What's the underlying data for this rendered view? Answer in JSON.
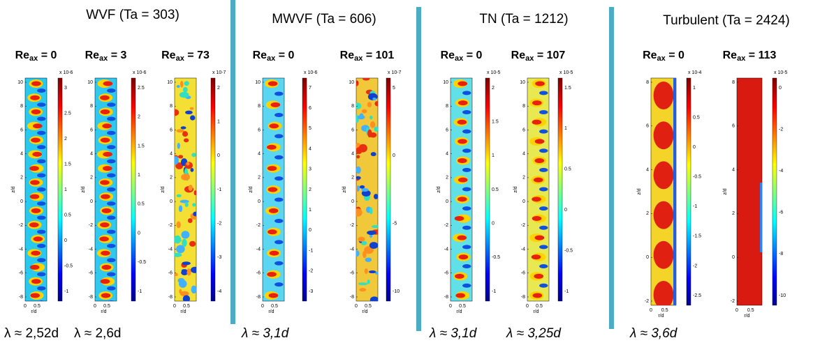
{
  "groups": [
    {
      "title": "WVF (Ta = 303)",
      "panels": [
        {
          "re": {
            "base": "Re",
            "sub": "ax",
            "rest": " = 0"
          },
          "lambda": "λ ≈ 2,52d",
          "yticks": [
            "10",
            "8",
            "6",
            "4",
            "2",
            "0",
            "-2",
            "-4",
            "-6",
            "-8"
          ],
          "xticks": [
            "0",
            "0.5"
          ],
          "xlabel": "r/d",
          "ylabel": "z/d",
          "cb_exp": "x 10-6",
          "cbticks": [
            "3",
            "2.5",
            "2",
            "1.5",
            "1",
            "0.5",
            "0",
            "-0.5",
            "-1"
          ]
        },
        {
          "re": {
            "base": "Re",
            "sub": "ax",
            "rest": " = 3"
          },
          "lambda": "λ ≈ 2,6d",
          "yticks": [
            "10",
            "8",
            "6",
            "4",
            "2",
            "0",
            "-2",
            "-4",
            "-6",
            "-8"
          ],
          "xticks": [
            "0",
            "0.5"
          ],
          "xlabel": "r/d",
          "ylabel": "z/d",
          "cb_exp": "x 10-6",
          "cbticks": [
            "2.5",
            "2",
            "1.5",
            "1",
            "0.5",
            "0",
            "-0.5",
            "-1"
          ]
        },
        {
          "re": {
            "base": "Re",
            "sub": "ax",
            "rest": " = 73"
          },
          "yticks": [
            "10",
            "8",
            "6",
            "4",
            "2",
            "0",
            "-2",
            "-4",
            "-6",
            "-8"
          ],
          "xticks": [
            "0",
            "0.5"
          ],
          "xlabel": "r/d",
          "ylabel": "z/d",
          "cb_exp": "x 10-7",
          "cbticks": [
            "2",
            "1",
            "0",
            "-1",
            "-2",
            "-3",
            "-4"
          ]
        }
      ]
    },
    {
      "title": "MWVF (Ta = 606)",
      "panels": [
        {
          "re": {
            "base": "Re",
            "sub": "ax",
            "rest": " = 0"
          },
          "lambda": "λ ≈ 3,1d",
          "yticks": [
            "10",
            "8",
            "6",
            "4",
            "2",
            "0",
            "-2",
            "-4",
            "-6",
            "-8"
          ],
          "xticks": [
            "0",
            "0.5"
          ],
          "xlabel": "r/d",
          "ylabel": "z/d",
          "cb_exp": "x 10-6",
          "cbticks": [
            "7",
            "6",
            "5",
            "4",
            "3",
            "2",
            "1",
            "0",
            "-1",
            "-2",
            "-3"
          ]
        },
        {
          "re": {
            "base": "Re",
            "sub": "ax",
            "rest": " = 101"
          },
          "yticks": [
            "10",
            "8",
            "6",
            "4",
            "2",
            "0",
            "-2",
            "-4",
            "-6",
            "-8"
          ],
          "xticks": [
            "0",
            "0.5"
          ],
          "xlabel": "r/d",
          "ylabel": "z/d",
          "cb_exp": "x 10-7",
          "cbticks": [
            "5",
            "0",
            "-5",
            "-10"
          ]
        }
      ]
    },
    {
      "title": "TN (Ta = 1212)",
      "panels": [
        {
          "re": {
            "base": "Re",
            "sub": "ax",
            "rest": " = 0"
          },
          "lambda": "λ ≈ 3,1d",
          "yticks": [
            "10",
            "8",
            "6",
            "4",
            "2",
            "0",
            "-2",
            "-4",
            "-6",
            "-8"
          ],
          "xticks": [
            "0",
            "0.5"
          ],
          "xlabel": "r/d",
          "ylabel": "z/d",
          "cb_exp": "x 10-5",
          "cbticks": [
            "2",
            "1.5",
            "1",
            "0.5",
            "0",
            "-0.5",
            "-1"
          ]
        },
        {
          "re": {
            "base": "Re",
            "sub": "ax",
            "rest": " = 107"
          },
          "lambda": "λ ≈ 3,25d",
          "yticks": [
            "10",
            "8",
            "6",
            "4",
            "2",
            "0",
            "-2",
            "-4",
            "-6",
            "-8"
          ],
          "xticks": [
            "0",
            "0.5"
          ],
          "xlabel": "r/d",
          "ylabel": "z/d",
          "cb_exp": "x 10-5",
          "cbticks": [
            "1.5",
            "1",
            "0.5",
            "0",
            "-0.5",
            "-1"
          ]
        }
      ]
    },
    {
      "title": "Turbulent (Ta = 2424)",
      "panels": [
        {
          "re": {
            "base": "Re",
            "sub": "ax",
            "rest": " = 0"
          },
          "lambda": "λ ≈ 3,6d",
          "yticks": [
            "8",
            "6",
            "4",
            "2",
            "0",
            "-2"
          ],
          "xticks": [
            "0",
            "0.5"
          ],
          "xlabel": "r/d",
          "ylabel": "z/d",
          "cb_exp": "x 10-4",
          "cbticks": [
            "1",
            "0.5",
            "0",
            "-0.5",
            "-1",
            "-1.5",
            "-2",
            "-2.5"
          ]
        },
        {
          "re": {
            "base": "Re",
            "sub": "ax",
            "rest": " = 113"
          },
          "yticks": [
            "8",
            "6",
            "4",
            "2",
            "0",
            "-2"
          ],
          "xticks": [
            "0",
            "0.5"
          ],
          "xlabel": "r/d",
          "ylabel": "z/d",
          "cb_exp": "x 10-5",
          "cbticks": [
            "0",
            "-2",
            "-4",
            "-6",
            "-8",
            "-10"
          ]
        }
      ]
    }
  ]
}
